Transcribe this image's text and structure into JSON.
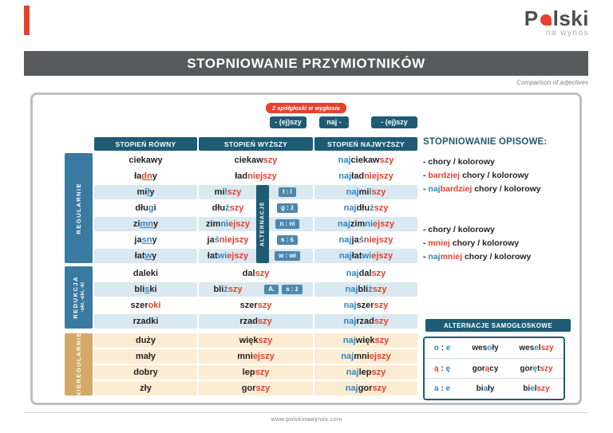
{
  "colors": {
    "red": "#E6402C",
    "blue": "#2B87C8",
    "navy": "#1E5B75",
    "steel": "#3A7AA1",
    "tan_label": "#D4A967",
    "row_blue": "#D9E8F1",
    "row_tan": "#FCECD2",
    "dark": "#231F20"
  },
  "logo": {
    "pre": "P",
    "post": "lski",
    "tagline": "na wynos"
  },
  "title_bar": {
    "title": "STOPNIOWANIE PRZYMIOTNIKÓW"
  },
  "subtitle": "Comparison of adjectives",
  "top_badges": {
    "note": "2 spółgłoski w wygłosie",
    "suffix_comp": "- (ej)szy",
    "prefix_sup": "naj -",
    "suffix_sup": "- (ej)szy"
  },
  "table": {
    "headers": [
      "STOPIEŃ RÓWNY",
      "STOPIEŃ WYŻSZY",
      "STOPIEŃ NAJWYŻSZY"
    ],
    "ribbon_label": "ALTERNACJE",
    "groups": [
      {
        "label": [
          "REGULARNIE"
        ],
        "style": "blue",
        "ribbon": {
          "from": 2,
          "to": 6
        },
        "rows": [
          {
            "bg": "w",
            "base": [
              {
                "t": "ciekawy"
              }
            ],
            "comp": [
              {
                "t": "ciekaw"
              },
              {
                "t": "szy",
                "c": "red"
              }
            ],
            "sup": [
              {
                "t": "naj",
                "c": "blue"
              },
              {
                "t": "ciekaw"
              },
              {
                "t": "szy",
                "c": "red"
              }
            ]
          },
          {
            "bg": "w",
            "base": [
              {
                "t": "ła"
              },
              {
                "t": "dn",
                "c": "red",
                "u": true
              },
              {
                "t": "y"
              }
            ],
            "comp": [
              {
                "t": "ład"
              },
              {
                "t": "niejszy",
                "c": "red"
              }
            ],
            "sup": [
              {
                "t": "naj",
                "c": "blue"
              },
              {
                "t": "ład"
              },
              {
                "t": "niejszy",
                "c": "red"
              }
            ]
          },
          {
            "bg": "b",
            "alt": "ł : l",
            "base": [
              {
                "t": "mi"
              },
              {
                "t": "ł",
                "c": "blue",
                "u": true
              },
              {
                "t": "y"
              }
            ],
            "comp": [
              {
                "t": "mi"
              },
              {
                "t": "l",
                "c": "blue"
              },
              {
                "t": "szy",
                "c": "red"
              }
            ],
            "sup": [
              {
                "t": "naj",
                "c": "blue"
              },
              {
                "t": "mi"
              },
              {
                "t": "l",
                "c": "blue"
              },
              {
                "t": "szy",
                "c": "red"
              }
            ]
          },
          {
            "bg": "w",
            "alt": "g : ż",
            "base": [
              {
                "t": "dłu"
              },
              {
                "t": "g",
                "c": "blue",
                "u": true
              },
              {
                "t": "i"
              }
            ],
            "comp": [
              {
                "t": "dłu"
              },
              {
                "t": "ż",
                "c": "blue"
              },
              {
                "t": "szy",
                "c": "red"
              }
            ],
            "sup": [
              {
                "t": "naj",
                "c": "blue"
              },
              {
                "t": "dłu"
              },
              {
                "t": "ż",
                "c": "blue"
              },
              {
                "t": "szy",
                "c": "red"
              }
            ]
          },
          {
            "bg": "b",
            "alt": "n : ni",
            "base": [
              {
                "t": "zi"
              },
              {
                "t": "mn",
                "c": "blue",
                "u": true
              },
              {
                "t": "y"
              }
            ],
            "comp": [
              {
                "t": "zim"
              },
              {
                "t": "ni",
                "c": "blue"
              },
              {
                "t": "ejszy",
                "c": "red"
              }
            ],
            "sup": [
              {
                "t": "naj",
                "c": "blue"
              },
              {
                "t": "zim"
              },
              {
                "t": "ni",
                "c": "blue"
              },
              {
                "t": "ejszy",
                "c": "red"
              }
            ]
          },
          {
            "bg": "w",
            "alt": "s : ś",
            "base": [
              {
                "t": "ja"
              },
              {
                "t": "sn",
                "c": "blue",
                "u": true
              },
              {
                "t": "y"
              }
            ],
            "comp": [
              {
                "t": "ja"
              },
              {
                "t": "ś",
                "c": "blue"
              },
              {
                "t": "niejszy",
                "c": "red"
              }
            ],
            "sup": [
              {
                "t": "naj",
                "c": "blue"
              },
              {
                "t": "ja"
              },
              {
                "t": "ś",
                "c": "blue"
              },
              {
                "t": "niejszy",
                "c": "red"
              }
            ]
          },
          {
            "bg": "b",
            "alt": "w : wi",
            "base": [
              {
                "t": "ła"
              },
              {
                "t": "t"
              },
              {
                "t": "w",
                "c": "blue",
                "u": true
              },
              {
                "t": "y"
              }
            ],
            "comp": [
              {
                "t": "łat"
              },
              {
                "t": "wi",
                "c": "blue"
              },
              {
                "t": "ejszy",
                "c": "red"
              }
            ],
            "sup": [
              {
                "t": "naj",
                "c": "blue"
              },
              {
                "t": "łat"
              },
              {
                "t": "wi",
                "c": "blue"
              },
              {
                "t": "ejszy",
                "c": "red"
              }
            ]
          }
        ]
      },
      {
        "label": [
          "REDUKCJA",
          "-oki, -eki, -ki"
        ],
        "style": "blue",
        "rows": [
          {
            "bg": "w",
            "base": [
              {
                "t": "daleki"
              }
            ],
            "comp": [
              {
                "t": "dal"
              },
              {
                "t": "szy",
                "c": "red"
              }
            ],
            "sup": [
              {
                "t": "naj",
                "c": "blue"
              },
              {
                "t": "dal"
              },
              {
                "t": "szy",
                "c": "red"
              }
            ]
          },
          {
            "bg": "b",
            "alt": "s : ż",
            "alt_extra": "A.",
            "base": [
              {
                "t": "bli"
              },
              {
                "t": "s",
                "c": "blue",
                "u": true
              },
              {
                "t": "ki"
              }
            ],
            "comp": [
              {
                "t": "bli"
              },
              {
                "t": "ż",
                "c": "blue"
              },
              {
                "t": "szy",
                "c": "red"
              }
            ],
            "sup": [
              {
                "t": "naj",
                "c": "blue"
              },
              {
                "t": "bli"
              },
              {
                "t": "ż",
                "c": "blue"
              },
              {
                "t": "szy",
                "c": "red"
              }
            ]
          },
          {
            "bg": "w",
            "base": [
              {
                "t": "szer"
              },
              {
                "t": "oki",
                "c": "red"
              }
            ],
            "comp": [
              {
                "t": "szer"
              },
              {
                "t": "szy",
                "c": "red"
              }
            ],
            "sup": [
              {
                "t": "naj",
                "c": "blue"
              },
              {
                "t": "szer"
              },
              {
                "t": "szy",
                "c": "red"
              }
            ]
          },
          {
            "bg": "b",
            "base": [
              {
                "t": "rzadki"
              }
            ],
            "comp": [
              {
                "t": "rzad"
              },
              {
                "t": "szy",
                "c": "red"
              }
            ],
            "sup": [
              {
                "t": "naj",
                "c": "blue"
              },
              {
                "t": "rzad"
              },
              {
                "t": "szy",
                "c": "red"
              }
            ]
          }
        ]
      },
      {
        "label": [
          "NIEREGULARNIE"
        ],
        "style": "tan",
        "rows": [
          {
            "bg": "t",
            "base": [
              {
                "t": "duży"
              }
            ],
            "comp": [
              {
                "t": "więk"
              },
              {
                "t": "szy",
                "c": "red"
              }
            ],
            "sup": [
              {
                "t": "naj",
                "c": "blue"
              },
              {
                "t": "więk"
              },
              {
                "t": "szy",
                "c": "red"
              }
            ]
          },
          {
            "bg": "t",
            "base": [
              {
                "t": "mały"
              }
            ],
            "comp": [
              {
                "t": "mni"
              },
              {
                "t": "ejszy",
                "c": "red"
              }
            ],
            "sup": [
              {
                "t": "naj",
                "c": "blue"
              },
              {
                "t": "mni"
              },
              {
                "t": "ejszy",
                "c": "red"
              }
            ]
          },
          {
            "bg": "t",
            "base": [
              {
                "t": "dobry"
              }
            ],
            "comp": [
              {
                "t": "lep"
              },
              {
                "t": "szy",
                "c": "red"
              }
            ],
            "sup": [
              {
                "t": "naj",
                "c": "blue"
              },
              {
                "t": "lep"
              },
              {
                "t": "szy",
                "c": "red"
              }
            ]
          },
          {
            "bg": "t",
            "base": [
              {
                "t": "zły"
              }
            ],
            "comp": [
              {
                "t": "gor"
              },
              {
                "t": "szy",
                "c": "red"
              }
            ],
            "sup": [
              {
                "t": "naj",
                "c": "blue"
              },
              {
                "t": "gor"
              },
              {
                "t": "szy",
                "c": "red"
              }
            ]
          }
        ]
      }
    ]
  },
  "opisowe": {
    "title": "STOPNIOWANIE OPISOWE:",
    "block1": [
      [
        {
          "t": "- chory / kolorowy"
        }
      ],
      [
        {
          "t": "- "
        },
        {
          "t": "bardziej",
          "c": "red"
        },
        {
          "t": " chory / kolorowy"
        }
      ],
      [
        {
          "t": "- "
        },
        {
          "t": "naj",
          "c": "blue"
        },
        {
          "t": "bardziej",
          "c": "red"
        },
        {
          "t": " chory / kolorowy"
        }
      ]
    ],
    "block2": [
      [
        {
          "t": "- chory / kolorowy"
        }
      ],
      [
        {
          "t": "- "
        },
        {
          "t": "mniej",
          "c": "red"
        },
        {
          "t": " chory / kolorowy"
        }
      ],
      [
        {
          "t": "- "
        },
        {
          "t": "naj",
          "c": "blue"
        },
        {
          "t": "mniej",
          "c": "red"
        },
        {
          "t": " chory / kolorowy"
        }
      ]
    ]
  },
  "vowel": {
    "title": "ALTERNACJE SAMOGŁOSKOWE",
    "rows": [
      {
        "pair": [
          {
            "t": "o",
            "c": "blue"
          },
          {
            "t": " : "
          },
          {
            "t": "e",
            "c": "blue"
          }
        ],
        "base": [
          {
            "t": "wes"
          },
          {
            "t": "o",
            "c": "blue"
          },
          {
            "t": "ły"
          }
        ],
        "comp": [
          {
            "t": "wes"
          },
          {
            "t": "e",
            "c": "blue"
          },
          {
            "t": "l"
          },
          {
            "t": "szy",
            "c": "red"
          }
        ]
      },
      {
        "pair": [
          {
            "t": "ą",
            "c": "red"
          },
          {
            "t": " : "
          },
          {
            "t": "ę",
            "c": "blue"
          }
        ],
        "base": [
          {
            "t": "gor"
          },
          {
            "t": "ą",
            "c": "red"
          },
          {
            "t": "cy"
          }
        ],
        "comp": [
          {
            "t": "gor"
          },
          {
            "t": "ę",
            "c": "blue"
          },
          {
            "t": "t"
          },
          {
            "t": "szy",
            "c": "red"
          }
        ]
      },
      {
        "pair": [
          {
            "t": "a",
            "c": "blue"
          },
          {
            "t": " : "
          },
          {
            "t": "e",
            "c": "blue"
          }
        ],
        "base": [
          {
            "t": "bi"
          },
          {
            "t": "a",
            "c": "blue"
          },
          {
            "t": "ły"
          }
        ],
        "comp": [
          {
            "t": "bi"
          },
          {
            "t": "e",
            "c": "blue"
          },
          {
            "t": "l"
          },
          {
            "t": "szy",
            "c": "red"
          }
        ]
      }
    ]
  },
  "footer": {
    "url": "www.polskinawynos.com"
  }
}
